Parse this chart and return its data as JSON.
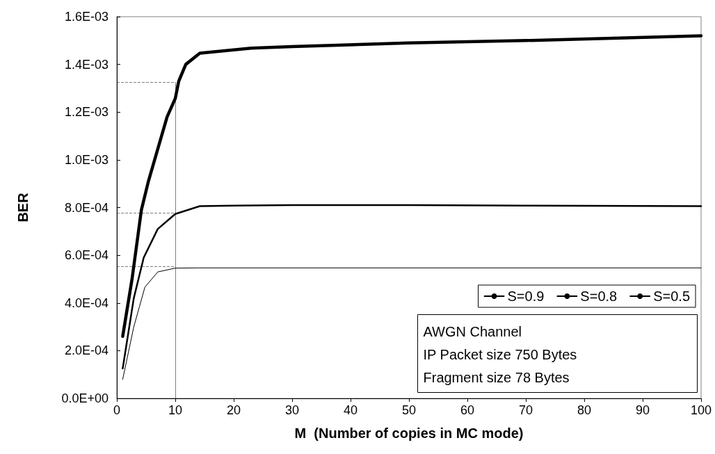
{
  "chart_data": {
    "type": "line",
    "xlabel": "M  (Number of copies in MC mode)",
    "ylabel": "BER",
    "xlim": [
      0,
      100
    ],
    "xticks": [
      0,
      10,
      20,
      30,
      40,
      50,
      60,
      70,
      80,
      90,
      100
    ],
    "ylim": [
      0,
      0.0016
    ],
    "yticks": [
      {
        "value": 0,
        "label": "0.0E+00"
      },
      {
        "value": 0.0002,
        "label": "2.0E-04"
      },
      {
        "value": 0.0004,
        "label": "4.0E-04"
      },
      {
        "value": 0.0006,
        "label": "6.0E-04"
      },
      {
        "value": 0.0008,
        "label": "8.0E-04"
      },
      {
        "value": 0.001,
        "label": "1.0E-03"
      },
      {
        "value": 0.0012,
        "label": "1.2E-03"
      },
      {
        "value": 0.0014,
        "label": "1.4E-03"
      },
      {
        "value": 0.0016,
        "label": "1.6E-03"
      }
    ],
    "grid": false,
    "legend": "bottom right",
    "marker": "none",
    "line_style": "solid",
    "series": [
      {
        "name": "S=0.9",
        "color": "#000000",
        "x": [
          1,
          2.9,
          4.8,
          7,
          10,
          14,
          20,
          40,
          60,
          80,
          100
        ],
        "values": [
          8e-05,
          0.0003,
          0.000466,
          0.00053,
          0.000546,
          0.000547,
          0.000547,
          0.000547,
          0.000547,
          0.000547,
          0.000547
        ]
      },
      {
        "name": "S=0.8",
        "color": "#000000",
        "x": [
          1,
          2.9,
          4.6,
          7,
          10,
          14.2,
          20,
          30,
          50,
          70,
          100
        ],
        "values": [
          0.000125,
          0.00042,
          0.00059,
          0.00071,
          0.000773,
          0.000806,
          0.000808,
          0.00081,
          0.00081,
          0.000808,
          0.000806
        ]
      },
      {
        "name": "S=0.5",
        "color": "#000000",
        "x": [
          1,
          2.6,
          4.2,
          5.4,
          8.6,
          10,
          10.6,
          11.8,
          14.2,
          23,
          30,
          50,
          70,
          100
        ],
        "values": [
          0.00026,
          0.0005,
          0.00079,
          0.00091,
          0.00118,
          0.001257,
          0.00133,
          0.0014,
          0.001447,
          0.001468,
          0.001475,
          0.00149,
          0.0015,
          0.00152
        ]
      }
    ],
    "ref_lines": [
      {
        "axis": "x",
        "value": 10,
        "line_style": "solid"
      },
      {
        "axis": "y",
        "value": 0.001326,
        "line_style": "dashed"
      },
      {
        "axis": "y",
        "value": 0.000776,
        "line_style": "dashed"
      },
      {
        "axis": "y",
        "value": 0.000553,
        "line_style": "dashed"
      }
    ],
    "annotations": [
      "AWGN Channel",
      "IP Packet size 750 Bytes",
      "Fragment size 78 Bytes"
    ]
  }
}
